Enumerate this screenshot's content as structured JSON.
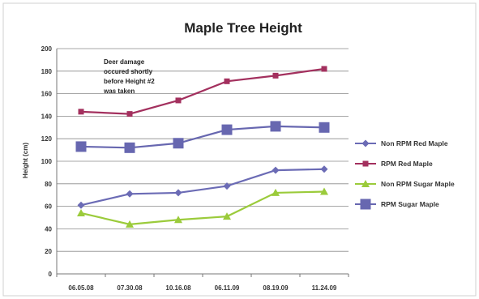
{
  "chart_data": {
    "type": "line",
    "title": "Maple Tree Height",
    "ylabel": "Height (cm)",
    "xlabel": "",
    "categories": [
      "06.05.08",
      "07.30.08",
      "10.16.08",
      "06.11.09",
      "08.19.09",
      "11.24.09"
    ],
    "ylim": [
      0,
      200
    ],
    "yticks": [
      0,
      20,
      40,
      60,
      80,
      100,
      120,
      140,
      160,
      180,
      200
    ],
    "grid": true,
    "legend_position": "right",
    "annotation": [
      "Deer damage",
      "occured shortly",
      "before Height #2",
      "was taken"
    ],
    "series": [
      {
        "name": "Non RPM Red Maple",
        "values": [
          61,
          71,
          72,
          78,
          92,
          93
        ],
        "color": "#6b6bb5",
        "marker": "diamond"
      },
      {
        "name": "RPM Red Maple",
        "values": [
          144,
          142,
          154,
          171,
          176,
          182
        ],
        "color": "#a3305e",
        "marker": "square-small"
      },
      {
        "name": "Non RPM Sugar Maple",
        "values": [
          54,
          44,
          48,
          51,
          72,
          73
        ],
        "color": "#9bcb3b",
        "marker": "triangle"
      },
      {
        "name": "RPM Sugar Maple",
        "values": [
          113,
          112,
          116,
          128,
          131,
          130
        ],
        "color": "#6767b0",
        "marker": "square"
      }
    ]
  }
}
